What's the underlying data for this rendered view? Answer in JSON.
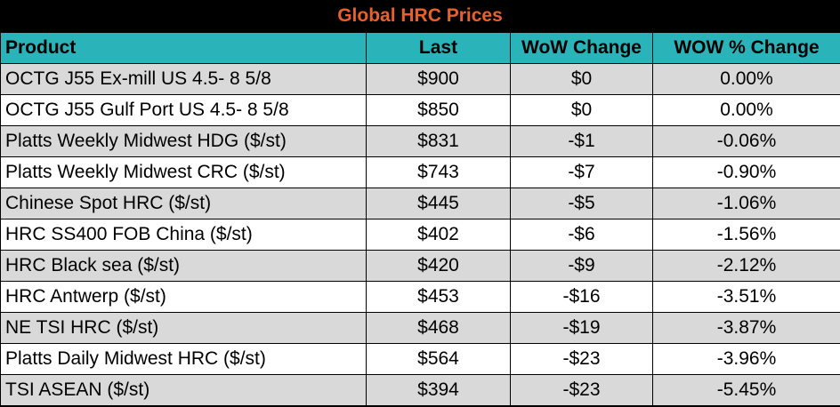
{
  "title": "Global HRC Prices",
  "headers": {
    "product": "Product",
    "last": "Last",
    "wow_change": "WoW Change",
    "wow_pct_change": "WOW % Change"
  },
  "colors": {
    "title_bg": "#000000",
    "title_text": "#e8612c",
    "header_bg": "#2ab3b8",
    "row_shade": "#d9d9d9",
    "row_plain": "#ffffff"
  },
  "rows": [
    {
      "product": "OCTG J55 Ex-mill US 4.5- 8 5/8",
      "last": "$900",
      "wow_change": "$0",
      "wow_pct_change": "0.00%"
    },
    {
      "product": "OCTG J55 Gulf Port US 4.5- 8 5/8",
      "last": "$850",
      "wow_change": "$0",
      "wow_pct_change": "0.00%"
    },
    {
      "product": "Platts Weekly Midwest HDG ($/st)",
      "last": "$831",
      "wow_change": "-$1",
      "wow_pct_change": "-0.06%"
    },
    {
      "product": "Platts Weekly Midwest CRC ($/st)",
      "last": "$743",
      "wow_change": "-$7",
      "wow_pct_change": "-0.90%"
    },
    {
      "product": "Chinese Spot HRC ($/st)",
      "last": "$445",
      "wow_change": "-$5",
      "wow_pct_change": "-1.06%"
    },
    {
      "product": "HRC SS400 FOB China ($/st)",
      "last": "$402",
      "wow_change": "-$6",
      "wow_pct_change": "-1.56%"
    },
    {
      "product": "HRC Black sea ($/st)",
      "last": "$420",
      "wow_change": "-$9",
      "wow_pct_change": "-2.12%"
    },
    {
      "product": "HRC Antwerp ($/st)",
      "last": "$453",
      "wow_change": "-$16",
      "wow_pct_change": "-3.51%"
    },
    {
      "product": "NE TSI HRC ($/st)",
      "last": "$468",
      "wow_change": "-$19",
      "wow_pct_change": "-3.87%"
    },
    {
      "product": "Platts Daily Midwest HRC ($/st)",
      "last": "$564",
      "wow_change": "-$23",
      "wow_pct_change": "-3.96%"
    },
    {
      "product": "TSI ASEAN ($/st)",
      "last": "$394",
      "wow_change": "-$23",
      "wow_pct_change": "-5.45%"
    }
  ]
}
